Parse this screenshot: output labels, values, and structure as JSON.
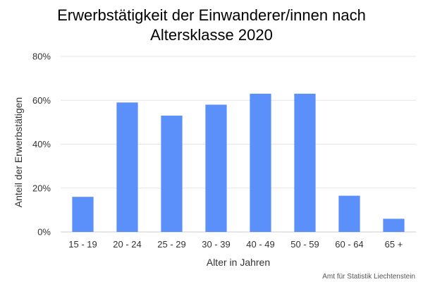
{
  "chart_data": {
    "type": "bar",
    "title_line1": "Erwerbstätigkeit der Einwanderer/innen nach",
    "title_line2": "Altersklasse 2020",
    "xlabel": "Alter in Jahren",
    "ylabel": "Anteil der Erwerbstätigen",
    "categories": [
      "15 - 19",
      "20 - 24",
      "25 - 29",
      "30 - 39",
      "40 - 49",
      "50 - 59",
      "60 - 64",
      "65 +"
    ],
    "values": [
      16,
      59,
      53,
      58,
      63,
      63,
      16.5,
      6
    ],
    "ylim": [
      0,
      80
    ],
    "yticks": [
      0,
      20,
      40,
      60,
      80
    ],
    "ytick_labels": [
      "0%",
      "20%",
      "40%",
      "60%",
      "80%"
    ],
    "grid": true,
    "bar_color": "#5b8ff9",
    "source": "Amt für Statistik Liechtenstein"
  }
}
